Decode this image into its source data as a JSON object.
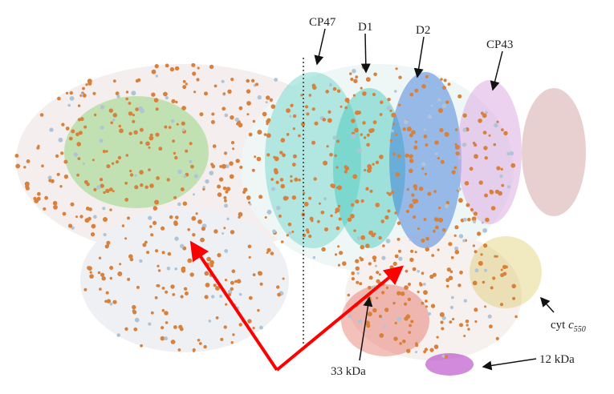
{
  "labels": {
    "cp47": "CP47",
    "d1": "D1",
    "d2": "D2",
    "cp43": "CP43",
    "cyt": {
      "prefix": "cyt",
      "italic": "c",
      "subscript": "550"
    },
    "kda33": "33 kDa",
    "kda12": "12 kDa"
  }
}
